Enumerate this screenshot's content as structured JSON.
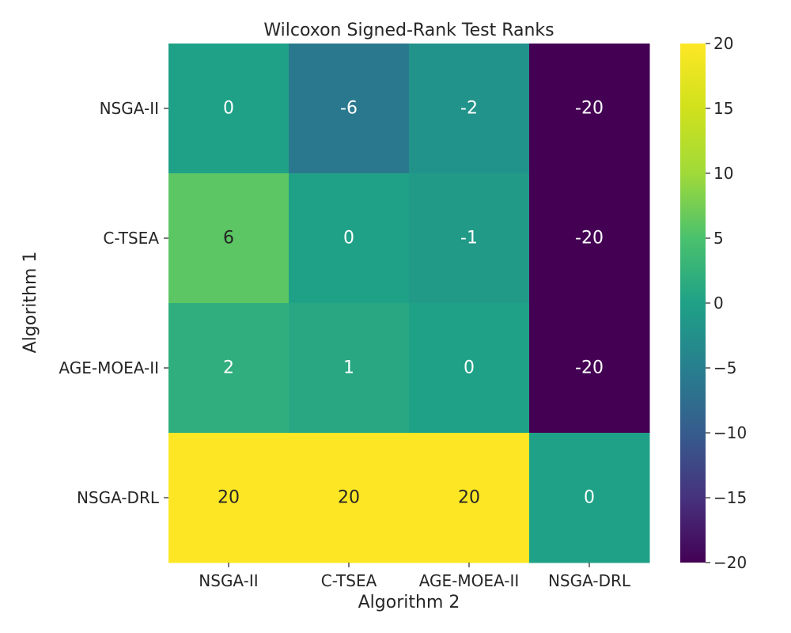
{
  "chart_data": {
    "type": "heatmap",
    "title": "Wilcoxon Signed-Rank Test Ranks",
    "xlabel": "Algorithm 2",
    "ylabel": "Algorithm 1",
    "x_categories": [
      "NSGA-II",
      "C-TSEA",
      "AGE-MOEA-II",
      "NSGA-DRL"
    ],
    "y_categories": [
      "NSGA-II",
      "C-TSEA",
      "AGE-MOEA-II",
      "NSGA-DRL"
    ],
    "values": [
      [
        0,
        -6,
        -2,
        -20
      ],
      [
        6,
        0,
        -1,
        -20
      ],
      [
        2,
        1,
        0,
        -20
      ],
      [
        20,
        20,
        20,
        0
      ]
    ],
    "colorbar": {
      "colormap": "viridis",
      "range": [
        -20,
        20
      ],
      "ticks": [
        20,
        15,
        10,
        5,
        0,
        -5,
        -10,
        -15,
        -20
      ],
      "tick_labels": [
        "20",
        "15",
        "10",
        "5",
        "0",
        "−5",
        "−10",
        "−15",
        "−20"
      ]
    },
    "annotations": true
  }
}
